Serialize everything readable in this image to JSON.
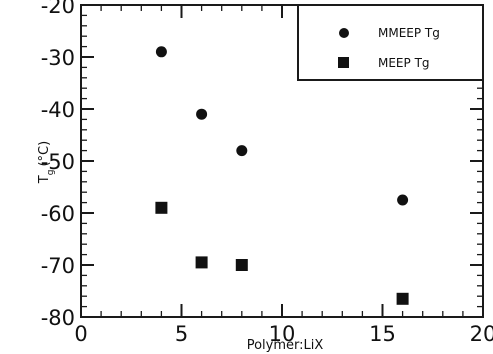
{
  "chart_data": {
    "type": "scatter",
    "xlabel": "Polymer:LiX",
    "ylabel": "T",
    "ylabel_subscript": "g",
    "ylabel_unit": "(°C)",
    "xlim": [
      0,
      20
    ],
    "ylim": [
      -80,
      -20
    ],
    "x_ticks": [
      0,
      5,
      10,
      15,
      20
    ],
    "x_tick_labels": [
      "0",
      "5",
      "10",
      "15",
      "20"
    ],
    "y_ticks": [
      -20,
      -30,
      -40,
      -50,
      -60,
      -70,
      -80
    ],
    "y_tick_labels": [
      "-20",
      "-30",
      "-40",
      "-50",
      "-60",
      "-70",
      "-80"
    ],
    "grid": false,
    "legend_position": "top-right",
    "series": [
      {
        "name": "MMEEP Tg",
        "marker": "circle",
        "color": "#111111",
        "points": [
          {
            "x": 4,
            "y": -29
          },
          {
            "x": 6,
            "y": -41
          },
          {
            "x": 8,
            "y": -48
          },
          {
            "x": 16,
            "y": -57.5
          }
        ]
      },
      {
        "name": "MEEP Tg",
        "marker": "square",
        "color": "#111111",
        "points": [
          {
            "x": 4,
            "y": -59
          },
          {
            "x": 6,
            "y": -69.5
          },
          {
            "x": 8,
            "y": -70
          },
          {
            "x": 16,
            "y": -76.5
          }
        ]
      }
    ]
  }
}
